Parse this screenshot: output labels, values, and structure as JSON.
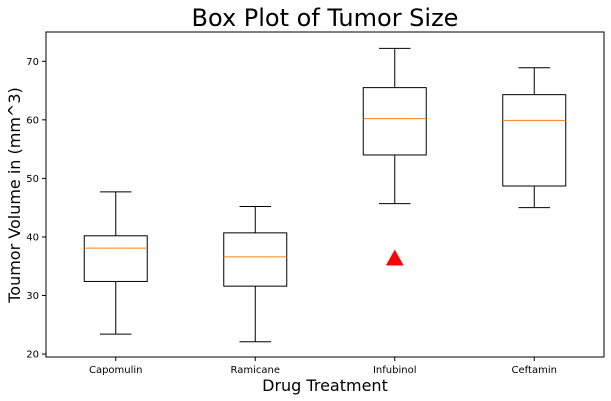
{
  "chart_data": {
    "type": "box",
    "title": "Box Plot of Tumor Size",
    "xlabel": "Drug Treatment",
    "ylabel": "Toumor Volume in (mm^3)",
    "ylim": [
      19.5,
      75
    ],
    "yticks": [
      20,
      30,
      40,
      50,
      60,
      70
    ],
    "grid": false,
    "categories": [
      "Capomulin",
      "Ramicane",
      "Infubinol",
      "Ceftamin"
    ],
    "boxes": [
      {
        "whisker_low": 23.4,
        "q1": 32.4,
        "median": 38.1,
        "q3": 40.2,
        "whisker_high": 47.7,
        "outliers": []
      },
      {
        "whisker_low": 22.1,
        "q1": 31.6,
        "median": 36.6,
        "q3": 40.7,
        "whisker_high": 45.2,
        "outliers": []
      },
      {
        "whisker_low": 45.7,
        "q1": 54.0,
        "median": 60.2,
        "q3": 65.5,
        "whisker_high": 72.2,
        "outliers": [
          36.3
        ]
      },
      {
        "whisker_low": 45.0,
        "q1": 48.7,
        "median": 59.9,
        "q3": 64.3,
        "whisker_high": 68.9,
        "outliers": []
      }
    ],
    "colors": {
      "box": "#000000",
      "median": "#ff7f0e",
      "outlier": "#ff0000"
    }
  }
}
